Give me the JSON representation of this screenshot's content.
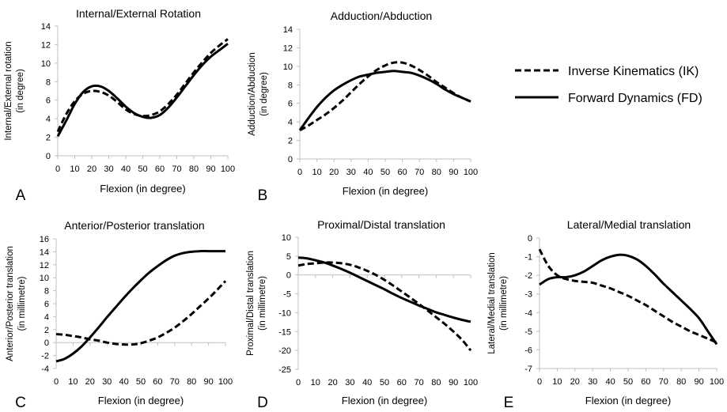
{
  "legend": {
    "items": [
      {
        "label": "Inverse Kinematics (IK)",
        "style": "dashed"
      },
      {
        "label": "Forward Dynamics (FD)",
        "style": "solid"
      }
    ]
  },
  "chart_data": [
    {
      "type": "line",
      "panel": "A",
      "title": "Internal/External Rotation",
      "xlabel": "Flexion (in degree)",
      "ylabel": [
        "Internal/External rotation",
        "(in degree)"
      ],
      "xlim": [
        0,
        100
      ],
      "ylim": [
        0,
        14
      ],
      "xticks": [
        0,
        10,
        20,
        30,
        40,
        50,
        60,
        70,
        80,
        90,
        100
      ],
      "yticks": [
        0,
        2,
        4,
        6,
        8,
        10,
        12,
        14
      ],
      "grid": false,
      "series": [
        {
          "name": "Inverse Kinematics (IK)",
          "style": "dashed",
          "x": [
            0,
            5,
            10,
            15,
            20,
            25,
            30,
            35,
            40,
            45,
            50,
            55,
            60,
            65,
            70,
            75,
            80,
            85,
            90,
            95,
            100
          ],
          "y": [
            2.6,
            4.5,
            5.9,
            6.7,
            7.0,
            6.9,
            6.5,
            5.8,
            5.0,
            4.5,
            4.3,
            4.4,
            4.8,
            5.6,
            6.6,
            7.8,
            9.0,
            10.1,
            11.1,
            11.9,
            12.6
          ]
        },
        {
          "name": "Forward Dynamics (FD)",
          "style": "solid",
          "x": [
            0,
            5,
            10,
            15,
            20,
            25,
            30,
            35,
            40,
            45,
            50,
            55,
            60,
            65,
            70,
            75,
            80,
            85,
            90,
            95,
            100
          ],
          "y": [
            2.1,
            3.8,
            5.6,
            6.9,
            7.5,
            7.5,
            7.0,
            6.2,
            5.3,
            4.6,
            4.2,
            4.1,
            4.4,
            5.2,
            6.3,
            7.5,
            8.7,
            9.8,
            10.7,
            11.4,
            12.1
          ]
        }
      ]
    },
    {
      "type": "line",
      "panel": "B",
      "title": "Adduction/Abduction",
      "xlabel": "Flexion (in degree)",
      "ylabel": [
        "Adduction/Abduction",
        "(in degree)"
      ],
      "xlim": [
        0,
        100
      ],
      "ylim": [
        0,
        14
      ],
      "xticks": [
        0,
        10,
        20,
        30,
        40,
        50,
        60,
        70,
        80,
        90,
        100
      ],
      "yticks": [
        0,
        2,
        4,
        6,
        8,
        10,
        12,
        14
      ],
      "grid": false,
      "series": [
        {
          "name": "Inverse Kinematics (IK)",
          "style": "dashed",
          "x": [
            0,
            5,
            10,
            15,
            20,
            25,
            30,
            35,
            40,
            45,
            50,
            55,
            60,
            65,
            70,
            75,
            80,
            85,
            90,
            95,
            100
          ],
          "y": [
            3.1,
            3.6,
            4.2,
            4.8,
            5.5,
            6.3,
            7.2,
            8.1,
            8.9,
            9.6,
            10.1,
            10.4,
            10.4,
            10.1,
            9.6,
            9.0,
            8.3,
            7.7,
            7.1,
            6.6,
            6.2
          ]
        },
        {
          "name": "Forward Dynamics (FD)",
          "style": "solid",
          "x": [
            0,
            5,
            10,
            15,
            20,
            25,
            30,
            35,
            40,
            45,
            50,
            55,
            60,
            65,
            70,
            75,
            80,
            85,
            90,
            95,
            100
          ],
          "y": [
            3.1,
            4.4,
            5.6,
            6.6,
            7.4,
            8.0,
            8.5,
            8.9,
            9.1,
            9.3,
            9.4,
            9.5,
            9.4,
            9.3,
            9.0,
            8.6,
            8.1,
            7.5,
            7.0,
            6.6,
            6.2
          ]
        }
      ]
    },
    {
      "type": "line",
      "panel": "C",
      "title": "Anterior/Posterior translation",
      "xlabel": "Flexion (in degree)",
      "ylabel": [
        "Anterior/Posterior translation",
        "(in millimetre)"
      ],
      "xlim": [
        0,
        100
      ],
      "ylim": [
        -4,
        16
      ],
      "xticks": [
        0,
        10,
        20,
        30,
        40,
        50,
        60,
        70,
        80,
        90,
        100
      ],
      "yticks": [
        -4,
        -2,
        0,
        2,
        4,
        6,
        8,
        10,
        12,
        14,
        16
      ],
      "grid": false,
      "series": [
        {
          "name": "Inverse Kinematics (IK)",
          "style": "dashed",
          "x": [
            0,
            5,
            10,
            15,
            20,
            25,
            30,
            35,
            40,
            45,
            50,
            55,
            60,
            65,
            70,
            75,
            80,
            85,
            90,
            95,
            100
          ],
          "y": [
            1.3,
            1.2,
            1.0,
            0.8,
            0.5,
            0.3,
            0.0,
            -0.2,
            -0.3,
            -0.3,
            -0.1,
            0.3,
            0.8,
            1.5,
            2.3,
            3.3,
            4.4,
            5.6,
            6.8,
            8.1,
            9.5
          ]
        },
        {
          "name": "Forward Dynamics (FD)",
          "style": "solid",
          "x": [
            0,
            5,
            10,
            15,
            20,
            25,
            30,
            35,
            40,
            45,
            50,
            55,
            60,
            65,
            70,
            75,
            80,
            85,
            90,
            95,
            100
          ],
          "y": [
            -2.9,
            -2.5,
            -1.7,
            -0.6,
            0.8,
            2.3,
            3.9,
            5.4,
            6.9,
            8.3,
            9.6,
            10.8,
            11.8,
            12.7,
            13.4,
            13.8,
            14.0,
            14.1,
            14.1,
            14.1,
            14.1
          ]
        }
      ]
    },
    {
      "type": "line",
      "panel": "D",
      "title": "Proximal/Distal translation",
      "xlabel": "Flexion (in degree)",
      "ylabel": [
        "Proximal/Distal translation",
        "(in millimetre)"
      ],
      "xlim": [
        0,
        100
      ],
      "ylim": [
        -25,
        10
      ],
      "xticks": [
        0,
        10,
        20,
        30,
        40,
        50,
        60,
        70,
        80,
        90,
        100
      ],
      "yticks": [
        -25,
        -20,
        -15,
        -10,
        -5,
        0,
        5,
        10
      ],
      "grid": false,
      "series": [
        {
          "name": "Inverse Kinematics (IK)",
          "style": "dashed",
          "x": [
            0,
            5,
            10,
            15,
            20,
            25,
            30,
            35,
            40,
            45,
            50,
            55,
            60,
            65,
            70,
            75,
            80,
            85,
            90,
            95,
            100
          ],
          "y": [
            2.5,
            2.9,
            3.1,
            3.3,
            3.3,
            3.1,
            2.7,
            2.0,
            1.1,
            0.0,
            -1.3,
            -2.8,
            -4.4,
            -6.0,
            -7.7,
            -9.4,
            -11.2,
            -13.0,
            -15.0,
            -17.2,
            -20.0
          ]
        },
        {
          "name": "Forward Dynamics (FD)",
          "style": "solid",
          "x": [
            0,
            5,
            10,
            15,
            20,
            25,
            30,
            35,
            40,
            45,
            50,
            55,
            60,
            65,
            70,
            75,
            80,
            85,
            90,
            95,
            100
          ],
          "y": [
            4.6,
            4.4,
            3.9,
            3.3,
            2.5,
            1.6,
            0.6,
            -0.5,
            -1.6,
            -2.7,
            -3.8,
            -5.0,
            -6.1,
            -7.1,
            -8.1,
            -9.0,
            -9.9,
            -10.6,
            -11.3,
            -11.9,
            -12.4
          ]
        }
      ]
    },
    {
      "type": "line",
      "panel": "E",
      "title": "Lateral/Medial translation",
      "xlabel": "Flexion (in degree)",
      "ylabel": [
        "Lateral/Medial translation",
        "(in millimetre)"
      ],
      "xlim": [
        0,
        100
      ],
      "ylim": [
        -7,
        0
      ],
      "xticks": [
        0,
        10,
        20,
        30,
        40,
        50,
        60,
        70,
        80,
        90,
        100
      ],
      "yticks": [
        -7,
        -6,
        -5,
        -4,
        -3,
        -2,
        -1,
        0
      ],
      "grid": false,
      "series": [
        {
          "name": "Inverse Kinematics (IK)",
          "style": "dashed",
          "x": [
            0,
            5,
            10,
            15,
            20,
            25,
            30,
            35,
            40,
            45,
            50,
            55,
            60,
            65,
            70,
            75,
            80,
            85,
            90,
            95,
            100
          ],
          "y": [
            -0.6,
            -1.5,
            -2.0,
            -2.2,
            -2.3,
            -2.35,
            -2.4,
            -2.55,
            -2.7,
            -2.9,
            -3.1,
            -3.35,
            -3.6,
            -3.9,
            -4.2,
            -4.5,
            -4.75,
            -5.0,
            -5.2,
            -5.4,
            -5.6
          ]
        },
        {
          "name": "Forward Dynamics (FD)",
          "style": "solid",
          "x": [
            0,
            5,
            10,
            15,
            20,
            25,
            30,
            35,
            40,
            45,
            50,
            55,
            60,
            65,
            70,
            75,
            80,
            85,
            90,
            95,
            100
          ],
          "y": [
            -2.5,
            -2.2,
            -2.1,
            -2.1,
            -2.0,
            -1.8,
            -1.5,
            -1.2,
            -1.0,
            -0.9,
            -0.95,
            -1.15,
            -1.5,
            -1.95,
            -2.45,
            -2.9,
            -3.35,
            -3.8,
            -4.3,
            -5.0,
            -5.7
          ]
        }
      ]
    }
  ]
}
